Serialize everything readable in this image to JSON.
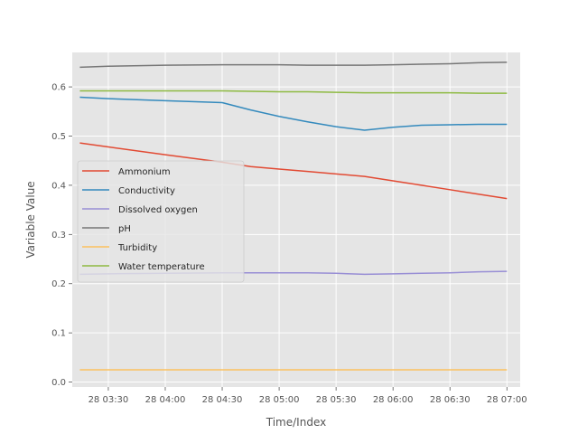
{
  "chart_data": {
    "type": "line",
    "title": "",
    "xlabel": "Time/Index",
    "ylabel": "Variable Value",
    "x": [
      "03:15",
      "03:30",
      "04:00",
      "04:30",
      "04:45",
      "05:00",
      "05:15",
      "05:30",
      "05:45",
      "06:00",
      "06:15",
      "06:30",
      "06:45",
      "07:00"
    ],
    "x_tick_labels": [
      "28 03:30",
      "28 04:00",
      "28 04:30",
      "28 05:00",
      "28 05:30",
      "28 06:00",
      "28 06:30",
      "28 07:00"
    ],
    "xlim": [
      "03:11",
      "07:07"
    ],
    "ylim": [
      -0.01,
      0.67
    ],
    "y_ticks": [
      0.0,
      0.1,
      0.2,
      0.3,
      0.4,
      0.5,
      0.6
    ],
    "grid": true,
    "legend_position": "center-left",
    "series": [
      {
        "name": "Ammonium",
        "color": "#E24A33",
        "values": [
          0.486,
          0.478,
          0.462,
          0.447,
          0.438,
          0.433,
          0.428,
          0.423,
          0.418,
          0.409,
          0.4,
          0.391,
          0.382,
          0.373
        ]
      },
      {
        "name": "Conductivity",
        "color": "#348ABD",
        "values": [
          0.579,
          0.576,
          0.572,
          0.568,
          0.553,
          0.54,
          0.529,
          0.519,
          0.512,
          0.518,
          0.522,
          0.523,
          0.524,
          0.524
        ]
      },
      {
        "name": "Dissolved oxygen",
        "color": "#988ED5",
        "values": [
          0.219,
          0.22,
          0.221,
          0.222,
          0.222,
          0.222,
          0.222,
          0.221,
          0.219,
          0.22,
          0.221,
          0.222,
          0.224,
          0.225
        ]
      },
      {
        "name": "pH",
        "color": "#777777",
        "values": [
          0.64,
          0.642,
          0.644,
          0.645,
          0.645,
          0.645,
          0.644,
          0.644,
          0.644,
          0.645,
          0.646,
          0.647,
          0.649,
          0.65
        ]
      },
      {
        "name": "Turbidity",
        "color": "#FBC15E",
        "values": [
          0.025,
          0.025,
          0.025,
          0.025,
          0.025,
          0.025,
          0.025,
          0.025,
          0.025,
          0.025,
          0.025,
          0.025,
          0.025,
          0.025
        ]
      },
      {
        "name": "Water temperature",
        "color": "#8EBA42",
        "values": [
          0.592,
          0.592,
          0.592,
          0.592,
          0.591,
          0.59,
          0.59,
          0.589,
          0.588,
          0.588,
          0.588,
          0.588,
          0.587,
          0.587
        ]
      }
    ]
  }
}
